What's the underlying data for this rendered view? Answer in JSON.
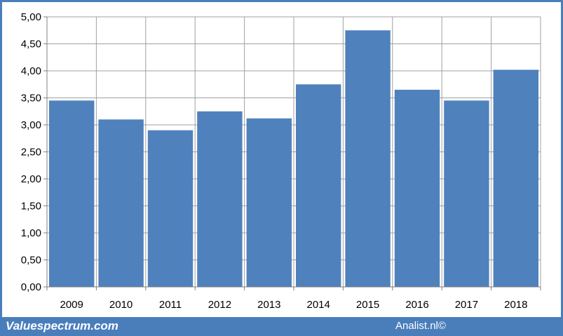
{
  "footer": {
    "site": "Valuespectrum.com",
    "copyright": "Analist.nl©"
  },
  "colors": {
    "bar": "#4f81bd",
    "frame": "#4a7ebb",
    "grid": "#a0a0a0"
  },
  "chart_data": {
    "type": "bar",
    "categories": [
      "2009",
      "2010",
      "2011",
      "2012",
      "2013",
      "2014",
      "2015",
      "2016",
      "2017",
      "2018"
    ],
    "values": [
      3.45,
      3.1,
      2.9,
      3.25,
      3.12,
      3.75,
      4.75,
      3.65,
      3.45,
      4.02
    ],
    "ylim": [
      0,
      5
    ],
    "yticks": [
      "0,00",
      "0,50",
      "1,00",
      "1,50",
      "2,00",
      "2,50",
      "3,00",
      "3,50",
      "4,00",
      "4,50",
      "5,00"
    ],
    "grid": true,
    "title": "",
    "xlabel": "",
    "ylabel": ""
  }
}
